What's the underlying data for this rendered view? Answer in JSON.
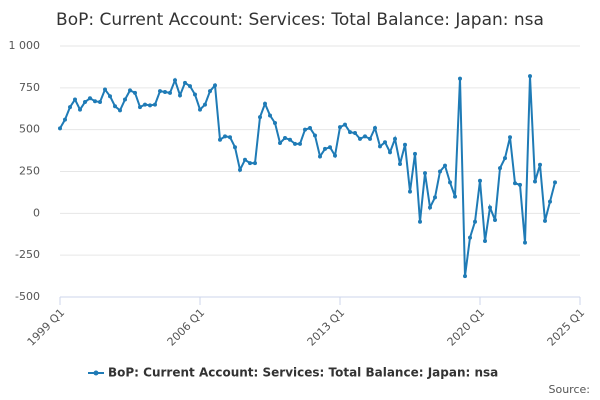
{
  "chart_data": {
    "type": "line",
    "title": "BoP: Current Account: Services: Total Balance: Japan: nsa",
    "source": "Source:",
    "x": [
      "1999 Q1",
      "1999 Q2",
      "1999 Q3",
      "1999 Q4",
      "2000 Q1",
      "2000 Q2",
      "2000 Q3",
      "2000 Q4",
      "2001 Q1",
      "2001 Q2",
      "2001 Q3",
      "2001 Q4",
      "2002 Q1",
      "2002 Q2",
      "2002 Q3",
      "2002 Q4",
      "2003 Q1",
      "2003 Q2",
      "2003 Q3",
      "2003 Q4",
      "2004 Q1",
      "2004 Q2",
      "2004 Q3",
      "2004 Q4",
      "2005 Q1",
      "2005 Q2",
      "2005 Q3",
      "2005 Q4",
      "2006 Q1",
      "2006 Q2",
      "2006 Q3",
      "2006 Q4",
      "2007 Q1",
      "2007 Q2",
      "2007 Q3",
      "2007 Q4",
      "2008 Q1",
      "2008 Q2",
      "2008 Q3",
      "2008 Q4",
      "2009 Q1",
      "2009 Q2",
      "2009 Q3",
      "2009 Q4",
      "2010 Q1",
      "2010 Q2",
      "2010 Q3",
      "2010 Q4",
      "2011 Q1",
      "2011 Q2",
      "2011 Q3",
      "2011 Q4",
      "2012 Q1",
      "2012 Q2",
      "2012 Q3",
      "2012 Q4",
      "2013 Q1",
      "2013 Q2",
      "2013 Q3",
      "2013 Q4",
      "2014 Q1",
      "2014 Q2",
      "2014 Q3",
      "2014 Q4",
      "2015 Q1",
      "2015 Q2",
      "2015 Q3",
      "2015 Q4",
      "2016 Q1",
      "2016 Q2",
      "2016 Q3",
      "2016 Q4",
      "2017 Q1",
      "2017 Q2",
      "2017 Q3",
      "2017 Q4",
      "2018 Q1",
      "2018 Q2",
      "2018 Q3",
      "2018 Q4",
      "2019 Q1",
      "2019 Q2",
      "2019 Q3",
      "2019 Q4",
      "2020 Q1",
      "2020 Q2",
      "2020 Q3",
      "2020 Q4",
      "2021 Q1",
      "2021 Q2",
      "2021 Q3",
      "2021 Q4",
      "2022 Q1",
      "2022 Q2",
      "2022 Q3",
      "2022 Q4",
      "2023 Q1",
      "2023 Q2",
      "2023 Q3",
      "2023 Q4"
    ],
    "series": [
      {
        "name": "BoP: Current Account: Services: Total Balance: Japan: nsa",
        "color": "#1f7bb6",
        "values": [
          508,
          560,
          635,
          680,
          620,
          665,
          688,
          670,
          665,
          740,
          700,
          640,
          615,
          680,
          735,
          720,
          635,
          650,
          645,
          650,
          730,
          725,
          720,
          795,
          705,
          780,
          760,
          710,
          620,
          650,
          730,
          765,
          440,
          460,
          455,
          395,
          260,
          320,
          300,
          300,
          575,
          655,
          585,
          540,
          420,
          450,
          440,
          415,
          415,
          500,
          510,
          465,
          340,
          385,
          395,
          345,
          515,
          530,
          485,
          480,
          445,
          460,
          445,
          510,
          400,
          425,
          365,
          445,
          295,
          410,
          130,
          355,
          -50,
          240,
          35,
          95,
          250,
          285,
          185,
          100,
          805,
          -375,
          -145,
          -50,
          195,
          -165,
          35,
          -40,
          270,
          330,
          455,
          180,
          170,
          -175,
          820,
          190,
          290,
          -45,
          70,
          185
        ]
      }
    ],
    "xlim": [
      "1999 Q1",
      "2025 Q1"
    ],
    "xticks": [
      "1999 Q1",
      "2006 Q1",
      "2013 Q1",
      "2020 Q1",
      "2025 Q1"
    ],
    "ylim": [
      -500,
      1000
    ],
    "yticks": [
      -500,
      -250,
      0,
      250,
      500,
      750,
      {
        "value": 1000,
        "label": "1 000"
      }
    ],
    "grid": true,
    "legend": "bottom"
  }
}
